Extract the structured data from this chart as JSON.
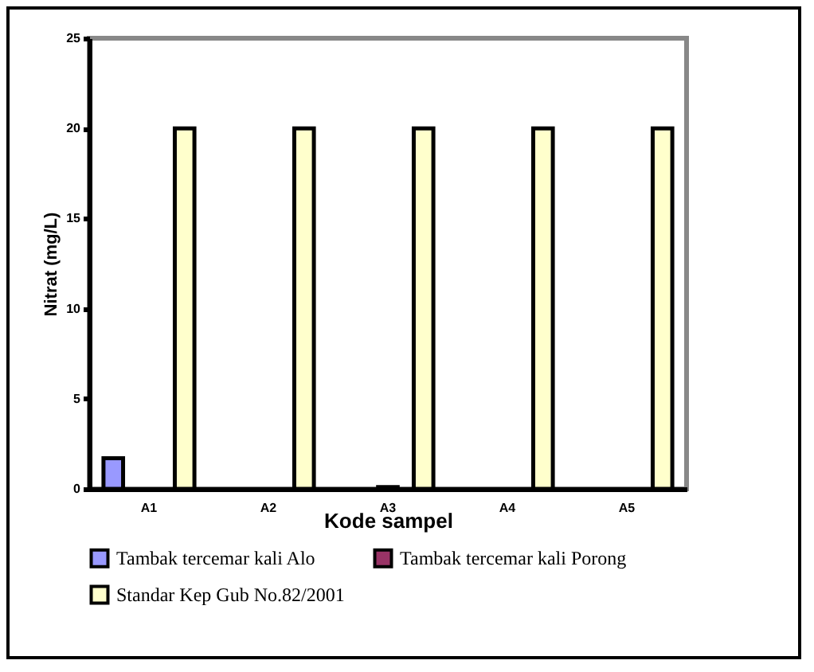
{
  "chart_data": {
    "type": "bar",
    "xlabel": "Kode sampel",
    "ylabel": "Nitrat (mg/L)",
    "categories": [
      "A1",
      "A2",
      "A3",
      "A4",
      "A5"
    ],
    "series": [
      {
        "name": "Tambak tercemar kali Alo",
        "color": "#9999ff",
        "values": [
          1.7,
          null,
          null,
          null,
          null
        ]
      },
      {
        "name": "Tambak tercemar kali Porong",
        "color": "#993366",
        "values": [
          null,
          null,
          0.1,
          null,
          null
        ]
      },
      {
        "name": "Standar Kep Gub No.82/2001",
        "color": "#ffffcc",
        "values": [
          20,
          20,
          20,
          20,
          20
        ]
      }
    ],
    "ylim": [
      0,
      25
    ],
    "yticks": [
      0,
      5,
      10,
      15,
      20,
      25
    ],
    "grid": false,
    "legend": "bottom"
  }
}
